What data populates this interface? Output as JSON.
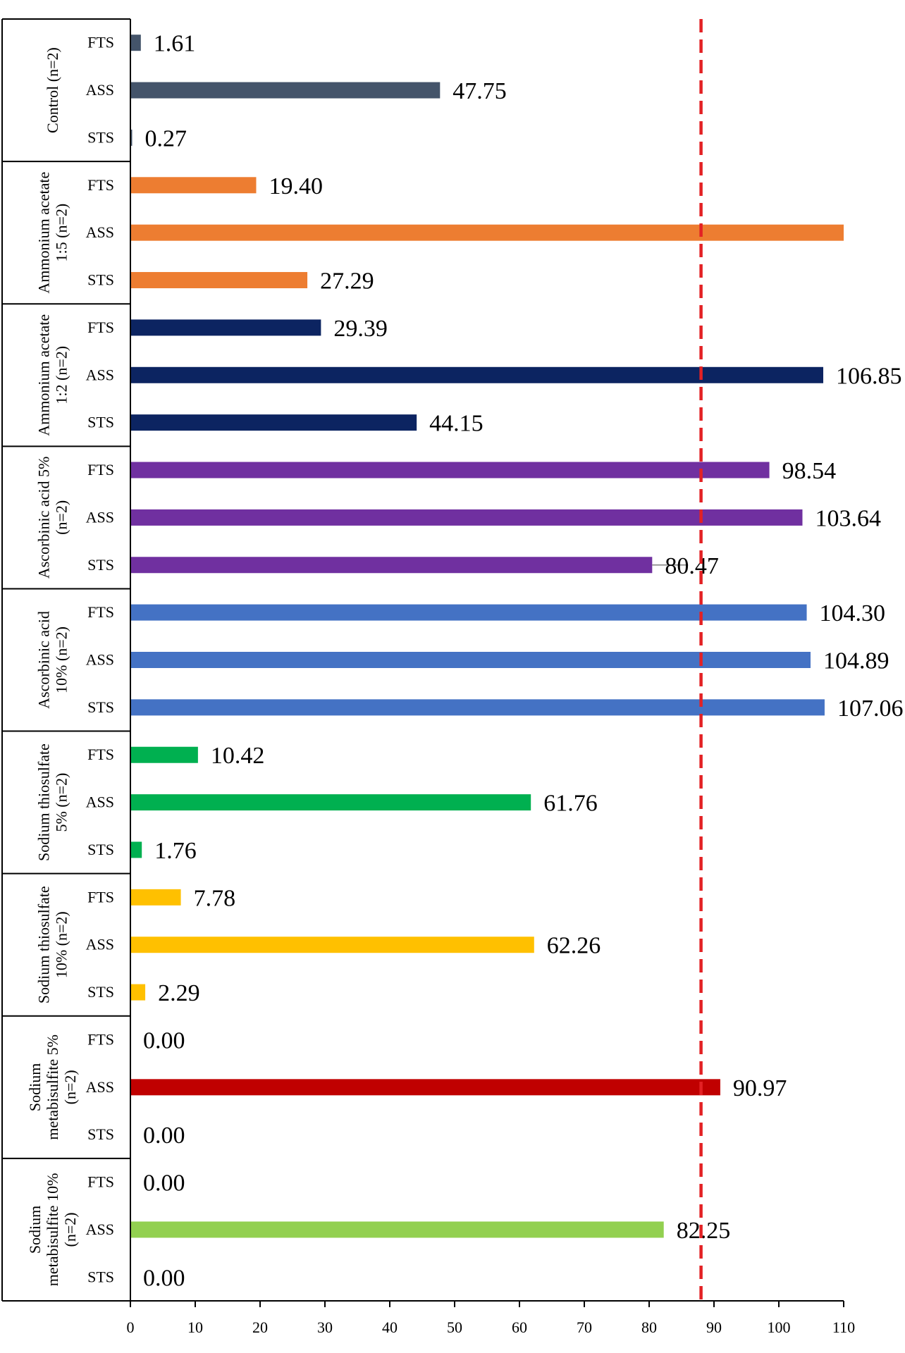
{
  "chart_data": {
    "type": "bar",
    "orientation": "horizontal",
    "xlim": [
      0,
      110
    ],
    "xticks": [
      0,
      10,
      20,
      30,
      40,
      50,
      60,
      70,
      80,
      90,
      100,
      110
    ],
    "reference_line": {
      "x": 88,
      "color": "#e32124",
      "style": "dashed"
    },
    "groups": [
      {
        "label": [
          "Control (n=2)"
        ],
        "color": "#44546a",
        "rows": [
          {
            "name": "FTS",
            "value": 1.61,
            "label": "1.61"
          },
          {
            "name": "ASS",
            "value": 47.75,
            "label": "47.75"
          },
          {
            "name": "STS",
            "value": 0.27,
            "label": "0.27"
          }
        ]
      },
      {
        "label": [
          "Ammonium acetate",
          "1:5 (n=2)"
        ],
        "color": "#ed7d31",
        "rows": [
          {
            "name": "FTS",
            "value": 19.4,
            "label": "19.40"
          },
          {
            "name": "ASS",
            "value": 110,
            "label": ""
          },
          {
            "name": "STS",
            "value": 27.29,
            "label": "27.29"
          }
        ]
      },
      {
        "label": [
          "Ammonium acetate",
          "1:2 (n=2)"
        ],
        "color": "#0c2461",
        "rows": [
          {
            "name": "FTS",
            "value": 29.39,
            "label": "29.39"
          },
          {
            "name": "ASS",
            "value": 106.85,
            "label": "106.85"
          },
          {
            "name": "STS",
            "value": 44.15,
            "label": "44.15"
          }
        ]
      },
      {
        "label": [
          "Ascorbinic acid 5%",
          "(n=2)"
        ],
        "color": "#7030a0",
        "rows": [
          {
            "name": "FTS",
            "value": 98.54,
            "label": "98.54"
          },
          {
            "name": "ASS",
            "value": 103.64,
            "label": "103.64"
          },
          {
            "name": "STS",
            "value": 80.47,
            "label": "80.47",
            "error": 86
          }
        ]
      },
      {
        "label": [
          "Ascorbinic acid",
          "10% (n=2)"
        ],
        "color": "#4472c4",
        "rows": [
          {
            "name": "FTS",
            "value": 104.3,
            "label": "104.30"
          },
          {
            "name": "ASS",
            "value": 104.89,
            "label": "104.89"
          },
          {
            "name": "STS",
            "value": 107.06,
            "label": "107.06"
          }
        ]
      },
      {
        "label": [
          "Sodium thiosulfate",
          "5% (n=2)"
        ],
        "color": "#00b050",
        "rows": [
          {
            "name": "FTS",
            "value": 10.42,
            "label": "10.42"
          },
          {
            "name": "ASS",
            "value": 61.76,
            "label": "61.76"
          },
          {
            "name": "STS",
            "value": 1.76,
            "label": "1.76"
          }
        ]
      },
      {
        "label": [
          "Sodium thiosulfate",
          "10% (n=2)"
        ],
        "color": "#ffc000",
        "rows": [
          {
            "name": "FTS",
            "value": 7.78,
            "label": "7.78"
          },
          {
            "name": "ASS",
            "value": 62.26,
            "label": "62.26"
          },
          {
            "name": "STS",
            "value": 2.29,
            "label": "2.29"
          }
        ]
      },
      {
        "label": [
          "Sodium",
          "metabisulfite 5%",
          "(n=2)"
        ],
        "color": "#c00000",
        "rows": [
          {
            "name": "FTS",
            "value": 0.0,
            "label": "0.00"
          },
          {
            "name": "ASS",
            "value": 90.97,
            "label": "90.97"
          },
          {
            "name": "STS",
            "value": 0.0,
            "label": "0.00"
          }
        ]
      },
      {
        "label": [
          "Sodium",
          "metabisulfite 10%",
          "(n=2)"
        ],
        "color": "#92d050",
        "rows": [
          {
            "name": "FTS",
            "value": 0.0,
            "label": "0.00"
          },
          {
            "name": "ASS",
            "value": 82.25,
            "label": "82.25"
          },
          {
            "name": "STS",
            "value": 0.0,
            "label": "0.00"
          }
        ]
      }
    ]
  }
}
